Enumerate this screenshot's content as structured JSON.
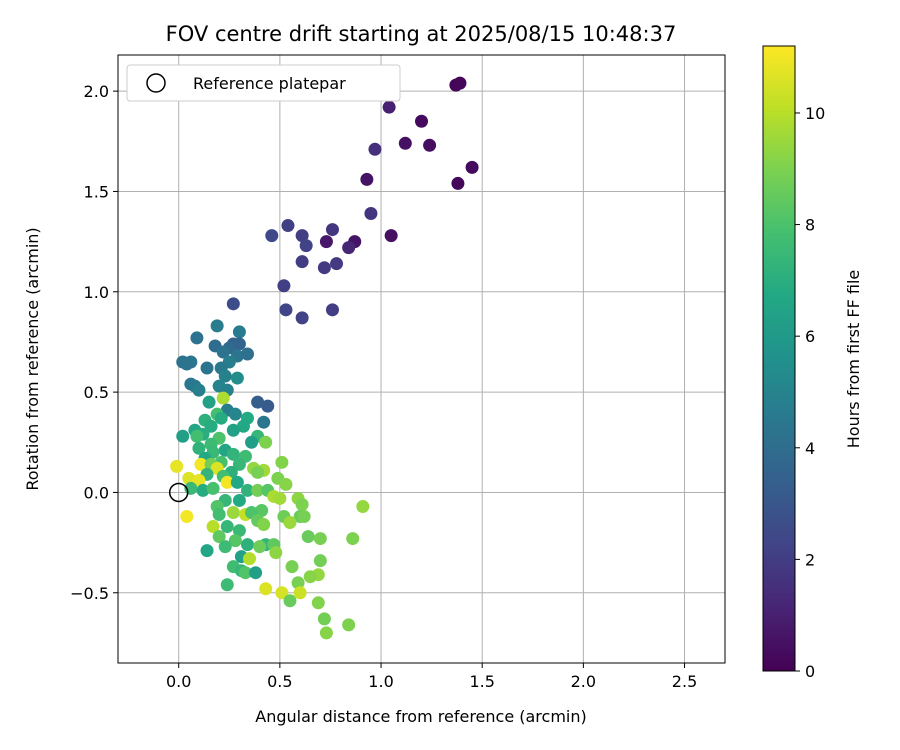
{
  "chart_data": {
    "type": "scatter",
    "title": "FOV centre drift starting at 2025/08/15 10:48:37",
    "xlabel": "Angular distance from reference (arcmin)",
    "ylabel": "Rotation from reference (arcmin)",
    "xlim": [
      -0.3,
      2.7
    ],
    "ylim": [
      -0.85,
      2.18
    ],
    "x_ticks": [
      {
        "v": 0.0,
        "label": "0.0"
      },
      {
        "v": 0.5,
        "label": "0.5"
      },
      {
        "v": 1.0,
        "label": "1.0"
      },
      {
        "v": 1.5,
        "label": "1.5"
      },
      {
        "v": 2.0,
        "label": "2.0"
      },
      {
        "v": 2.5,
        "label": "2.5"
      }
    ],
    "y_ticks": [
      {
        "v": -0.5,
        "label": "−0.5"
      },
      {
        "v": 0.0,
        "label": "0.0"
      },
      {
        "v": 0.5,
        "label": "0.5"
      },
      {
        "v": 1.0,
        "label": "1.0"
      },
      {
        "v": 1.5,
        "label": "1.5"
      },
      {
        "v": 2.0,
        "label": "2.0"
      }
    ],
    "grid": true,
    "legend": {
      "placement": "top-left",
      "entries": [
        {
          "label": "Reference platepar",
          "marker": "hollow-circle"
        }
      ]
    },
    "reference_point": {
      "x": 0.0,
      "y": 0.0
    },
    "colorbar": {
      "label": "Hours from first FF file",
      "range": [
        0,
        11.2
      ],
      "colormap": "viridis",
      "ticks": [
        {
          "v": 0,
          "label": "0"
        },
        {
          "v": 2,
          "label": "2"
        },
        {
          "v": 4,
          "label": "4"
        },
        {
          "v": 6,
          "label": "6"
        },
        {
          "v": 8,
          "label": "8"
        },
        {
          "v": 10,
          "label": "10"
        }
      ]
    },
    "points": [
      {
        "x": 1.37,
        "y": 2.03,
        "h": 0.1
      },
      {
        "x": 1.39,
        "y": 2.04,
        "h": 0.2
      },
      {
        "x": 1.04,
        "y": 1.92,
        "h": 1.0
      },
      {
        "x": 1.2,
        "y": 1.85,
        "h": 0.3
      },
      {
        "x": 1.12,
        "y": 1.74,
        "h": 0.5
      },
      {
        "x": 1.24,
        "y": 1.73,
        "h": 0.4
      },
      {
        "x": 0.97,
        "y": 1.71,
        "h": 1.5
      },
      {
        "x": 1.45,
        "y": 1.62,
        "h": 0.3
      },
      {
        "x": 1.38,
        "y": 1.54,
        "h": 0.2
      },
      {
        "x": 0.93,
        "y": 1.56,
        "h": 0.6
      },
      {
        "x": 0.95,
        "y": 1.39,
        "h": 1.7
      },
      {
        "x": 0.54,
        "y": 1.33,
        "h": 2.1
      },
      {
        "x": 0.76,
        "y": 1.31,
        "h": 1.8
      },
      {
        "x": 0.61,
        "y": 1.28,
        "h": 2.0
      },
      {
        "x": 0.46,
        "y": 1.28,
        "h": 2.4
      },
      {
        "x": 1.05,
        "y": 1.28,
        "h": 0.5
      },
      {
        "x": 0.87,
        "y": 1.25,
        "h": 0.6
      },
      {
        "x": 0.73,
        "y": 1.25,
        "h": 0.7
      },
      {
        "x": 0.84,
        "y": 1.22,
        "h": 1.2
      },
      {
        "x": 0.63,
        "y": 1.23,
        "h": 2.2
      },
      {
        "x": 0.61,
        "y": 1.15,
        "h": 2.0
      },
      {
        "x": 0.78,
        "y": 1.14,
        "h": 1.9
      },
      {
        "x": 0.72,
        "y": 1.12,
        "h": 1.9
      },
      {
        "x": 0.52,
        "y": 1.03,
        "h": 2.1
      },
      {
        "x": 0.27,
        "y": 0.94,
        "h": 2.6
      },
      {
        "x": 0.53,
        "y": 0.91,
        "h": 2.3
      },
      {
        "x": 0.76,
        "y": 0.91,
        "h": 2.0
      },
      {
        "x": 0.61,
        "y": 0.87,
        "h": 2.2
      },
      {
        "x": 0.19,
        "y": 0.83,
        "h": 4.6
      },
      {
        "x": 0.3,
        "y": 0.8,
        "h": 4.6
      },
      {
        "x": 0.09,
        "y": 0.77,
        "h": 4.2
      },
      {
        "x": 0.27,
        "y": 0.74,
        "h": 3.5
      },
      {
        "x": 0.18,
        "y": 0.73,
        "h": 4.0
      },
      {
        "x": 0.25,
        "y": 0.72,
        "h": 3.9
      },
      {
        "x": 0.3,
        "y": 0.74,
        "h": 3.6
      },
      {
        "x": 0.22,
        "y": 0.7,
        "h": 4.2
      },
      {
        "x": 0.29,
        "y": 0.68,
        "h": 4.4
      },
      {
        "x": 0.34,
        "y": 0.69,
        "h": 4.1
      },
      {
        "x": 0.02,
        "y": 0.65,
        "h": 4.3
      },
      {
        "x": 0.04,
        "y": 0.64,
        "h": 4.2
      },
      {
        "x": 0.06,
        "y": 0.65,
        "h": 4.4
      },
      {
        "x": 0.25,
        "y": 0.65,
        "h": 4.8
      },
      {
        "x": 0.21,
        "y": 0.62,
        "h": 4.5
      },
      {
        "x": 0.14,
        "y": 0.62,
        "h": 4.3
      },
      {
        "x": 0.23,
        "y": 0.58,
        "h": 4.9
      },
      {
        "x": 0.29,
        "y": 0.57,
        "h": 5.4
      },
      {
        "x": 0.06,
        "y": 0.54,
        "h": 4.4
      },
      {
        "x": 0.08,
        "y": 0.53,
        "h": 4.5
      },
      {
        "x": 0.2,
        "y": 0.53,
        "h": 5.0
      },
      {
        "x": 0.24,
        "y": 0.51,
        "h": 4.9
      },
      {
        "x": 0.1,
        "y": 0.51,
        "h": 4.8
      },
      {
        "x": 0.22,
        "y": 0.47,
        "h": 9.8
      },
      {
        "x": 0.15,
        "y": 0.45,
        "h": 6.4
      },
      {
        "x": 0.39,
        "y": 0.45,
        "h": 3.3
      },
      {
        "x": 0.44,
        "y": 0.43,
        "h": 3.2
      },
      {
        "x": 0.24,
        "y": 0.41,
        "h": 4.6
      },
      {
        "x": 0.19,
        "y": 0.39,
        "h": 7.8
      },
      {
        "x": 0.28,
        "y": 0.39,
        "h": 5.1
      },
      {
        "x": 0.21,
        "y": 0.37,
        "h": 6.9
      },
      {
        "x": 0.13,
        "y": 0.36,
        "h": 7.1
      },
      {
        "x": 0.34,
        "y": 0.37,
        "h": 6.8
      },
      {
        "x": 0.42,
        "y": 0.35,
        "h": 4.4
      },
      {
        "x": 0.16,
        "y": 0.33,
        "h": 6.9
      },
      {
        "x": 0.32,
        "y": 0.33,
        "h": 6.7
      },
      {
        "x": 0.08,
        "y": 0.31,
        "h": 6.6
      },
      {
        "x": 0.27,
        "y": 0.31,
        "h": 6.4
      },
      {
        "x": 0.12,
        "y": 0.29,
        "h": 7.0
      },
      {
        "x": 0.09,
        "y": 0.28,
        "h": 7.8
      },
      {
        "x": 0.02,
        "y": 0.28,
        "h": 6.3
      },
      {
        "x": 0.2,
        "y": 0.27,
        "h": 8.0
      },
      {
        "x": 0.39,
        "y": 0.28,
        "h": 7.4
      },
      {
        "x": 0.43,
        "y": 0.25,
        "h": 9.0
      },
      {
        "x": 0.36,
        "y": 0.25,
        "h": 6.2
      },
      {
        "x": 0.16,
        "y": 0.24,
        "h": 7.6
      },
      {
        "x": 0.1,
        "y": 0.22,
        "h": 7.2
      },
      {
        "x": 0.23,
        "y": 0.21,
        "h": 6.6
      },
      {
        "x": 0.17,
        "y": 0.2,
        "h": 7.5
      },
      {
        "x": 0.27,
        "y": 0.19,
        "h": 7.3
      },
      {
        "x": 0.33,
        "y": 0.18,
        "h": 7.7
      },
      {
        "x": 0.13,
        "y": 0.17,
        "h": 6.8
      },
      {
        "x": 0.21,
        "y": 0.15,
        "h": 7.9
      },
      {
        "x": 0.51,
        "y": 0.15,
        "h": 9.1
      },
      {
        "x": 0.11,
        "y": 0.14,
        "h": 11.0
      },
      {
        "x": 0.16,
        "y": 0.14,
        "h": 8.8
      },
      {
        "x": 0.3,
        "y": 0.14,
        "h": 7.4
      },
      {
        "x": -0.01,
        "y": 0.13,
        "h": 10.8
      },
      {
        "x": 0.19,
        "y": 0.12,
        "h": 10.6
      },
      {
        "x": 0.37,
        "y": 0.12,
        "h": 9.4
      },
      {
        "x": 0.42,
        "y": 0.11,
        "h": 9.6
      },
      {
        "x": 0.39,
        "y": 0.1,
        "h": 8.9
      },
      {
        "x": 0.26,
        "y": 0.1,
        "h": 7.1
      },
      {
        "x": 0.14,
        "y": 0.09,
        "h": 7.3
      },
      {
        "x": 0.22,
        "y": 0.08,
        "h": 7.8
      },
      {
        "x": 0.05,
        "y": 0.07,
        "h": 10.6
      },
      {
        "x": 0.49,
        "y": 0.07,
        "h": 9.0
      },
      {
        "x": 0.1,
        "y": 0.06,
        "h": 10.8
      },
      {
        "x": 0.24,
        "y": 0.05,
        "h": 11.0
      },
      {
        "x": 0.29,
        "y": 0.05,
        "h": 6.7
      },
      {
        "x": 0.53,
        "y": 0.04,
        "h": 9.2
      },
      {
        "x": 0.06,
        "y": 0.02,
        "h": 7.5
      },
      {
        "x": 0.12,
        "y": 0.01,
        "h": 6.9
      },
      {
        "x": 0.17,
        "y": 0.02,
        "h": 7.9
      },
      {
        "x": 0.34,
        "y": 0.01,
        "h": 7.2
      },
      {
        "x": 0.39,
        "y": 0.01,
        "h": 8.8
      },
      {
        "x": 0.44,
        "y": 0.01,
        "h": 8.2
      },
      {
        "x": 0.47,
        "y": -0.02,
        "h": 9.8
      },
      {
        "x": 0.5,
        "y": -0.03,
        "h": 9.6
      },
      {
        "x": 0.59,
        "y": -0.03,
        "h": 9.3
      },
      {
        "x": 0.23,
        "y": -0.04,
        "h": 7.4
      },
      {
        "x": 0.3,
        "y": -0.04,
        "h": 6.8
      },
      {
        "x": 0.61,
        "y": -0.06,
        "h": 9.0
      },
      {
        "x": 0.19,
        "y": -0.07,
        "h": 8.1
      },
      {
        "x": 0.91,
        "y": -0.07,
        "h": 9.4
      },
      {
        "x": 0.41,
        "y": -0.09,
        "h": 8.3
      },
      {
        "x": 0.27,
        "y": -0.1,
        "h": 9.5
      },
      {
        "x": 0.2,
        "y": -0.11,
        "h": 7.8
      },
      {
        "x": 0.33,
        "y": -0.11,
        "h": 10.2
      },
      {
        "x": 0.36,
        "y": -0.1,
        "h": 8.0
      },
      {
        "x": 0.04,
        "y": -0.12,
        "h": 11.0
      },
      {
        "x": 0.52,
        "y": -0.12,
        "h": 8.7
      },
      {
        "x": 0.6,
        "y": -0.12,
        "h": 8.6
      },
      {
        "x": 0.62,
        "y": -0.12,
        "h": 8.9
      },
      {
        "x": 0.39,
        "y": -0.14,
        "h": 8.5
      },
      {
        "x": 0.55,
        "y": -0.15,
        "h": 9.5
      },
      {
        "x": 0.17,
        "y": -0.17,
        "h": 10.0
      },
      {
        "x": 0.24,
        "y": -0.17,
        "h": 7.4
      },
      {
        "x": 0.42,
        "y": -0.16,
        "h": 9.1
      },
      {
        "x": 0.3,
        "y": -0.19,
        "h": 7.5
      },
      {
        "x": 0.2,
        "y": -0.22,
        "h": 8.4
      },
      {
        "x": 0.64,
        "y": -0.22,
        "h": 8.6
      },
      {
        "x": 0.7,
        "y": -0.23,
        "h": 8.9
      },
      {
        "x": 0.86,
        "y": -0.23,
        "h": 9.0
      },
      {
        "x": 0.28,
        "y": -0.24,
        "h": 8.2
      },
      {
        "x": 0.34,
        "y": -0.26,
        "h": 7.1
      },
      {
        "x": 0.43,
        "y": -0.26,
        "h": 7.3
      },
      {
        "x": 0.47,
        "y": -0.26,
        "h": 8.4
      },
      {
        "x": 0.23,
        "y": -0.27,
        "h": 7.6
      },
      {
        "x": 0.4,
        "y": -0.27,
        "h": 8.7
      },
      {
        "x": 0.14,
        "y": -0.29,
        "h": 6.6
      },
      {
        "x": 0.48,
        "y": -0.3,
        "h": 9.3
      },
      {
        "x": 0.31,
        "y": -0.32,
        "h": 6.4
      },
      {
        "x": 0.35,
        "y": -0.33,
        "h": 9.9
      },
      {
        "x": 0.7,
        "y": -0.34,
        "h": 8.8
      },
      {
        "x": 0.27,
        "y": -0.37,
        "h": 7.7
      },
      {
        "x": 0.56,
        "y": -0.37,
        "h": 8.9
      },
      {
        "x": 0.31,
        "y": -0.39,
        "h": 7.4
      },
      {
        "x": 0.33,
        "y": -0.4,
        "h": 8.1
      },
      {
        "x": 0.38,
        "y": -0.4,
        "h": 6.3
      },
      {
        "x": 0.69,
        "y": -0.41,
        "h": 9.4
      },
      {
        "x": 0.65,
        "y": -0.42,
        "h": 9.2
      },
      {
        "x": 0.59,
        "y": -0.45,
        "h": 8.9
      },
      {
        "x": 0.24,
        "y": -0.46,
        "h": 7.6
      },
      {
        "x": 0.43,
        "y": -0.48,
        "h": 10.6
      },
      {
        "x": 0.51,
        "y": -0.5,
        "h": 10.5
      },
      {
        "x": 0.6,
        "y": -0.5,
        "h": 10.3
      },
      {
        "x": 0.55,
        "y": -0.54,
        "h": 8.6
      },
      {
        "x": 0.69,
        "y": -0.55,
        "h": 9.1
      },
      {
        "x": 0.72,
        "y": -0.63,
        "h": 8.8
      },
      {
        "x": 0.84,
        "y": -0.66,
        "h": 9.0
      },
      {
        "x": 0.73,
        "y": -0.7,
        "h": 9.2
      }
    ]
  }
}
